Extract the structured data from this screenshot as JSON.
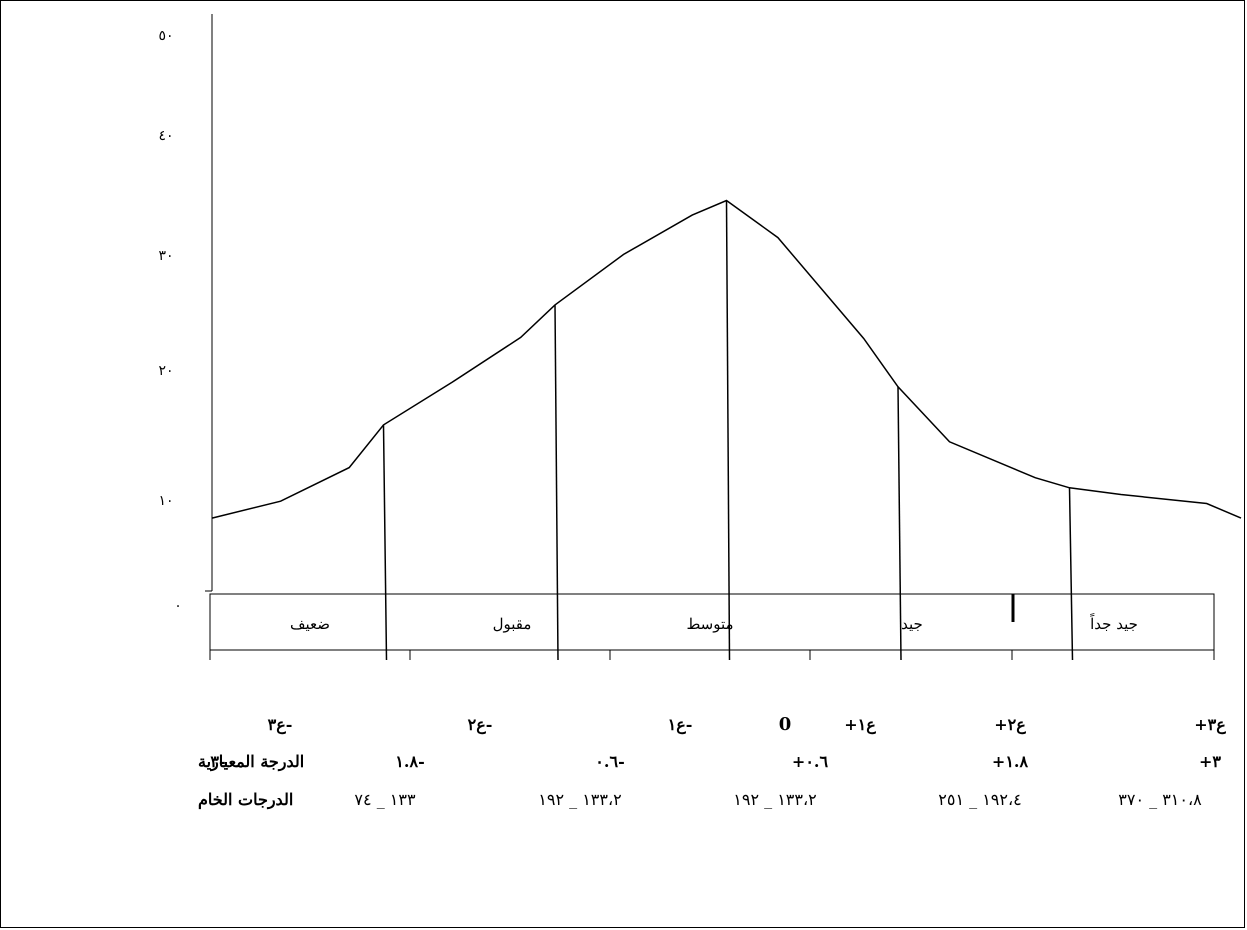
{
  "chart_data": {
    "type": "area",
    "y_ticks": [
      "٥٠",
      "٤٠",
      "٣٠",
      "٢٠",
      "١٠",
      "٠"
    ],
    "ylim": [
      0,
      50
    ],
    "grid": false,
    "curve": {
      "x": [
        -3,
        -2.6,
        -2.2,
        -2.0,
        -1.6,
        -1.2,
        -1.0,
        -0.6,
        -0.2,
        0,
        0.3,
        0.8,
        1.0,
        1.3,
        1.8,
        2.0,
        2.3,
        2.8,
        3.0
      ],
      "y": [
        6.5,
        8.0,
        11.0,
        14.8,
        18.6,
        22.6,
        25.5,
        30.0,
        33.5,
        34.8,
        31.5,
        22.5,
        18.2,
        13.3,
        10.1,
        9.2,
        8.6,
        7.8,
        6.5
      ]
    },
    "dividers_x": [
      -2,
      -1,
      0,
      1,
      2
    ],
    "categories": [
      "جيد جداً",
      "جيد",
      "متوسط",
      "مقبول",
      "ضعيف"
    ],
    "sigma_labels": [
      "ع٣+",
      "ع٢+",
      "ع١+",
      "0",
      "-ع١",
      "-ع٢",
      "-ع٣"
    ],
    "standard_score": {
      "label": "الدرجة المعيارية",
      "values": [
        "٣+",
        "١.٨+",
        "٠.٦+",
        "-٠.٦",
        "-١.٨",
        "-٣"
      ]
    },
    "raw_score": {
      "label": "الدرجات الخام",
      "values": [
        "٣١٠،٨ _ ٣٧٠",
        "١٩٢،٤ _ ٢٥١",
        "١٣٣،٢ _ ١٩٢",
        "١٣٣،٢ _ ١٩٢",
        "١٣٣ _ ٧٤"
      ]
    }
  }
}
